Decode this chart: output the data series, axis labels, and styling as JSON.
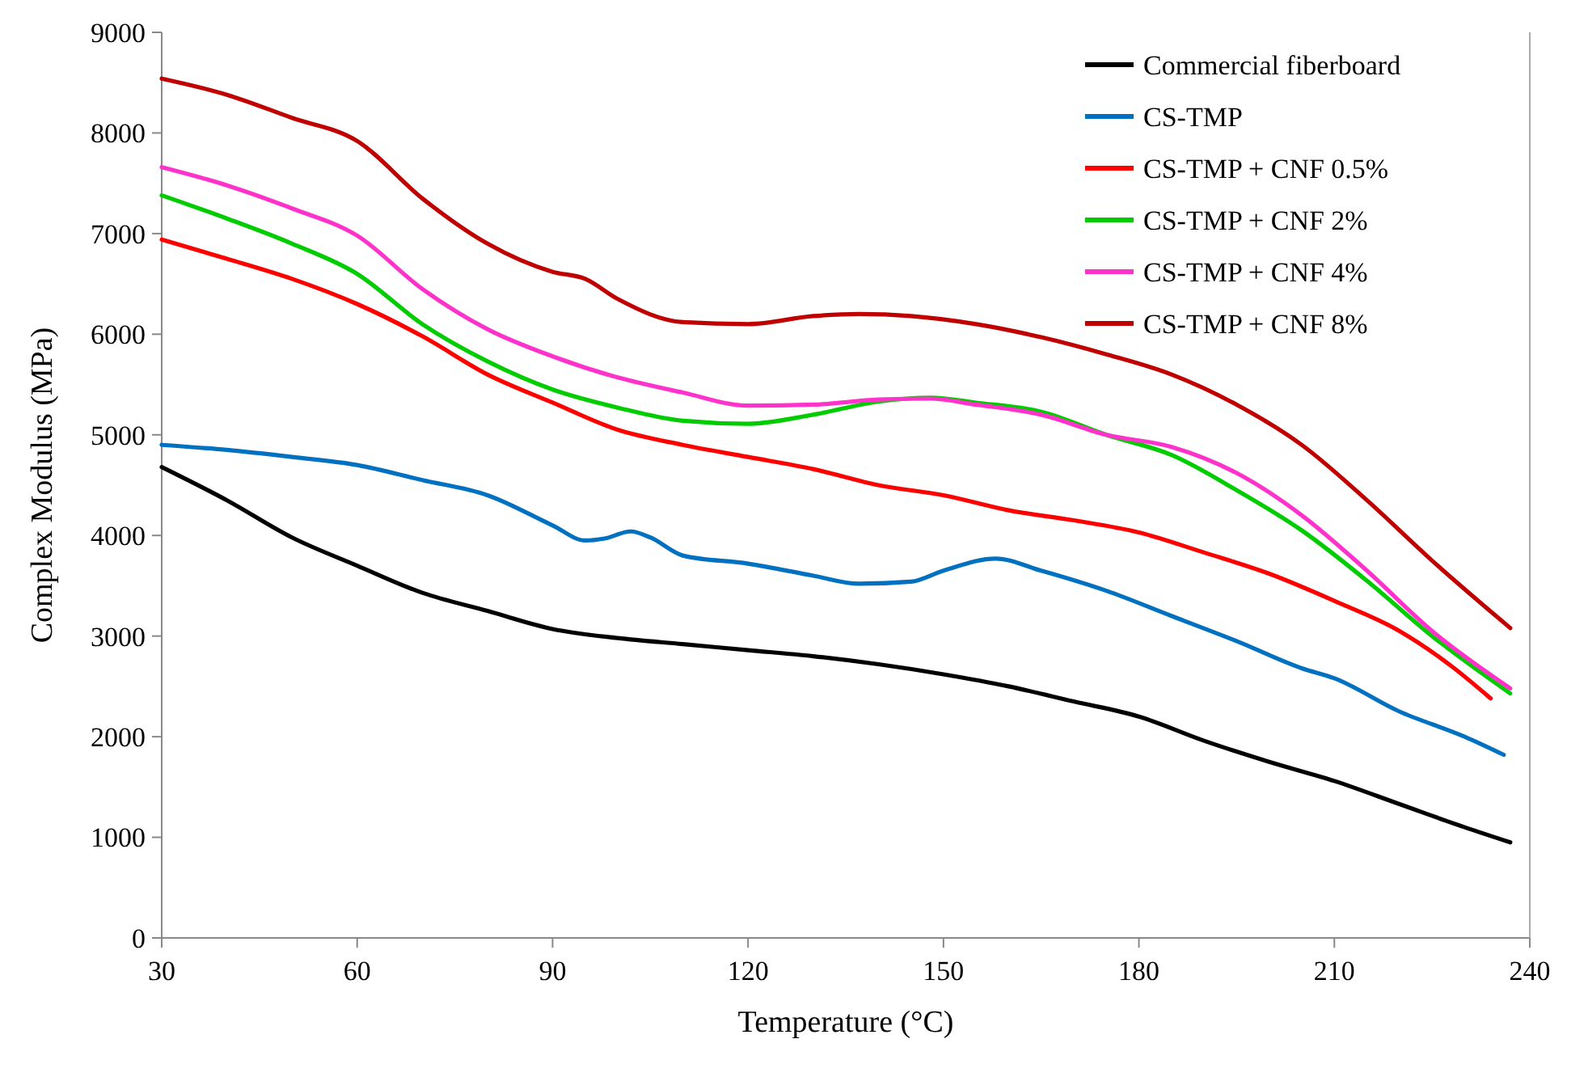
{
  "chart_data": {
    "type": "line",
    "xlabel": "Temperature (°C)",
    "ylabel": "Complex Modulus (MPa)",
    "xlim": [
      30,
      240
    ],
    "xticks": [
      30,
      60,
      90,
      120,
      150,
      180,
      210,
      240
    ],
    "ylim": [
      0,
      9000
    ],
    "yticks": [
      0,
      1000,
      2000,
      3000,
      4000,
      5000,
      6000,
      7000,
      8000,
      9000
    ],
    "grid": false,
    "legend": "top right",
    "marker": "none",
    "line_style": "solid",
    "series": [
      {
        "name": "Commercial fiberboard",
        "color": "#000000",
        "x": [
          30,
          40,
          50,
          60,
          70,
          80,
          90,
          100,
          110,
          120,
          130,
          140,
          150,
          160,
          170,
          180,
          190,
          200,
          210,
          220,
          230,
          237
        ],
        "values": [
          4680,
          4350,
          3980,
          3700,
          3430,
          3250,
          3070,
          2980,
          2920,
          2860,
          2800,
          2720,
          2620,
          2500,
          2350,
          2200,
          1960,
          1750,
          1560,
          1330,
          1100,
          950
        ]
      },
      {
        "name": "CS-TMP",
        "color": "#0070c0",
        "x": [
          30,
          40,
          50,
          60,
          70,
          80,
          90,
          95,
          98,
          102,
          105,
          110,
          120,
          130,
          137,
          145,
          150,
          158,
          165,
          175,
          185,
          195,
          205,
          210,
          220,
          230,
          236
        ],
        "values": [
          4900,
          4850,
          4780,
          4700,
          4550,
          4400,
          4100,
          3950,
          3970,
          4040,
          3980,
          3800,
          3720,
          3600,
          3520,
          3540,
          3650,
          3770,
          3650,
          3450,
          3200,
          2950,
          2680,
          2580,
          2250,
          2000,
          1820
        ]
      },
      {
        "name": "CS-TMP + CNF 0.5%",
        "color": "#ff0000",
        "x": [
          30,
          40,
          50,
          60,
          70,
          80,
          90,
          100,
          110,
          120,
          130,
          140,
          150,
          160,
          170,
          180,
          190,
          200,
          210,
          220,
          228,
          234
        ],
        "values": [
          6940,
          6750,
          6550,
          6300,
          5980,
          5600,
          5320,
          5050,
          4900,
          4780,
          4660,
          4500,
          4400,
          4250,
          4150,
          4030,
          3830,
          3620,
          3350,
          3050,
          2700,
          2380
        ]
      },
      {
        "name": "CS-TMP + CNF 2%",
        "color": "#00cc00",
        "x": [
          30,
          40,
          50,
          60,
          70,
          80,
          90,
          100,
          110,
          120,
          130,
          140,
          148,
          155,
          165,
          175,
          185,
          195,
          205,
          215,
          225,
          237
        ],
        "values": [
          7380,
          7150,
          6900,
          6600,
          6100,
          5730,
          5450,
          5270,
          5140,
          5110,
          5200,
          5330,
          5370,
          5320,
          5230,
          5000,
          4800,
          4450,
          4050,
          3550,
          3000,
          2430
        ]
      },
      {
        "name": "CS-TMP + CNF 4%",
        "color": "#ff33cc",
        "x": [
          30,
          40,
          50,
          60,
          70,
          80,
          90,
          100,
          110,
          120,
          130,
          140,
          148,
          155,
          165,
          175,
          185,
          195,
          205,
          215,
          225,
          237
        ],
        "values": [
          7660,
          7480,
          7250,
          6980,
          6450,
          6050,
          5780,
          5570,
          5420,
          5290,
          5300,
          5350,
          5360,
          5300,
          5200,
          5000,
          4880,
          4620,
          4200,
          3650,
          3050,
          2480
        ]
      },
      {
        "name": "CS-TMP + CNF 8%",
        "color": "#c00000",
        "x": [
          30,
          40,
          50,
          60,
          70,
          80,
          90,
          95,
          100,
          110,
          120,
          130,
          137,
          145,
          155,
          165,
          175,
          185,
          195,
          205,
          215,
          225,
          237
        ],
        "values": [
          8540,
          8380,
          8150,
          7920,
          7350,
          6900,
          6620,
          6550,
          6350,
          6120,
          6100,
          6180,
          6200,
          6180,
          6100,
          5970,
          5800,
          5600,
          5300,
          4900,
          4350,
          3750,
          3080
        ]
      }
    ]
  }
}
